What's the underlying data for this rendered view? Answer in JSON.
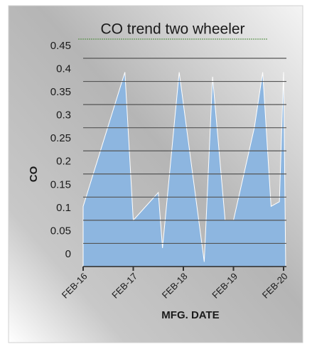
{
  "chart_data": {
    "type": "area",
    "title": "CO trend two wheeler",
    "xlabel": "MFG. DATE",
    "ylabel": "CO",
    "x": [
      0,
      10,
      12,
      14,
      18,
      19,
      23,
      29,
      31,
      34,
      36,
      39,
      41,
      43,
      45,
      47,
      48
    ],
    "series": [
      {
        "name": "CO",
        "color": "#8db6e0",
        "values": [
          0.13,
          0.42,
          0.1,
          0.12,
          0.16,
          0.04,
          0.42,
          0.01,
          0.41,
          0.1,
          0.1,
          0.22,
          0.3,
          0.42,
          0.13,
          0.14,
          0.42
        ]
      }
    ],
    "xlim": [
      0,
      48
    ],
    "xticks": [
      {
        "value": 0,
        "label": "FEB-16"
      },
      {
        "value": 12,
        "label": "FEB-17"
      },
      {
        "value": 24,
        "label": "FEB-18"
      },
      {
        "value": 36,
        "label": "FEB-19"
      },
      {
        "value": 48,
        "label": "FEB-20"
      }
    ],
    "ylim": [
      0,
      0.45
    ],
    "yticks": [
      0,
      0.05,
      0.1,
      0.15,
      0.2,
      0.25,
      0.3,
      0.35,
      0.4,
      0.45
    ],
    "grid": true
  }
}
